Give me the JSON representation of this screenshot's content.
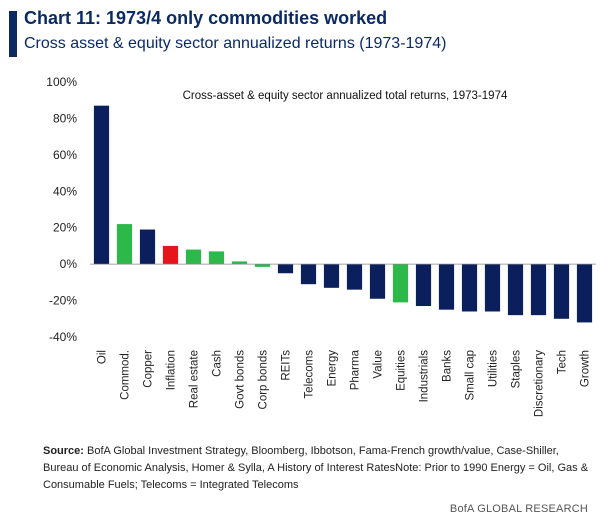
{
  "header": {
    "title": "Chart 11: 1973/4 only commodities worked",
    "subtitle": "Cross asset & equity sector annualized returns (1973-1974)"
  },
  "chart_data": {
    "type": "bar",
    "title": "Cross-asset & equity sector annualized total returns, 1973-1974",
    "xlabel": "",
    "ylabel": "",
    "ylim": [
      -40,
      100
    ],
    "yticks": [
      -40,
      -20,
      0,
      20,
      40,
      60,
      80,
      100
    ],
    "ytick_labels": [
      "-40%",
      "-20%",
      "0%",
      "20%",
      "40%",
      "60%",
      "80%",
      "100%"
    ],
    "grid": false,
    "categories": [
      "Oil",
      "Commod.",
      "Copper",
      "Inflation",
      "Real estate",
      "Cash",
      "Govt bonds",
      "Corp bonds",
      "REITs",
      "Telecoms",
      "Energy",
      "Pharma",
      "Value",
      "Equities",
      "Industrials",
      "Banks",
      "Small cap",
      "Utilities",
      "Staples",
      "Discretionary",
      "Tech",
      "Growth"
    ],
    "values": [
      87,
      22,
      19,
      10,
      8,
      7,
      1.5,
      -1.5,
      -5,
      -11,
      -13,
      -14,
      -19,
      -21,
      -23,
      -25,
      -26,
      -26,
      -28,
      -28,
      -30,
      -32
    ],
    "colors": [
      "#0b1f5c",
      "#2db84a",
      "#0b1f5c",
      "#e8141b",
      "#2db84a",
      "#2db84a",
      "#2db84a",
      "#2db84a",
      "#0b1f5c",
      "#0b1f5c",
      "#0b1f5c",
      "#0b1f5c",
      "#0b1f5c",
      "#2db84a",
      "#0b1f5c",
      "#0b1f5c",
      "#0b1f5c",
      "#0b1f5c",
      "#0b1f5c",
      "#0b1f5c",
      "#0b1f5c",
      "#0b1f5c"
    ]
  },
  "footer": {
    "source_label": "Source:",
    "source_text": "BofA Global Investment Strategy, Bloomberg, Ibbotson,  Fama-French growth/value, Case-Shiller, Bureau of Economic  Analysis, Homer & Sylla, A History of Interest RatesNote:  Prior to 1990 Energy = Oil, Gas & Consumable  Fuels; Telecoms  = Integrated Telecoms",
    "brand": "BofA GLOBAL RESEARCH"
  }
}
